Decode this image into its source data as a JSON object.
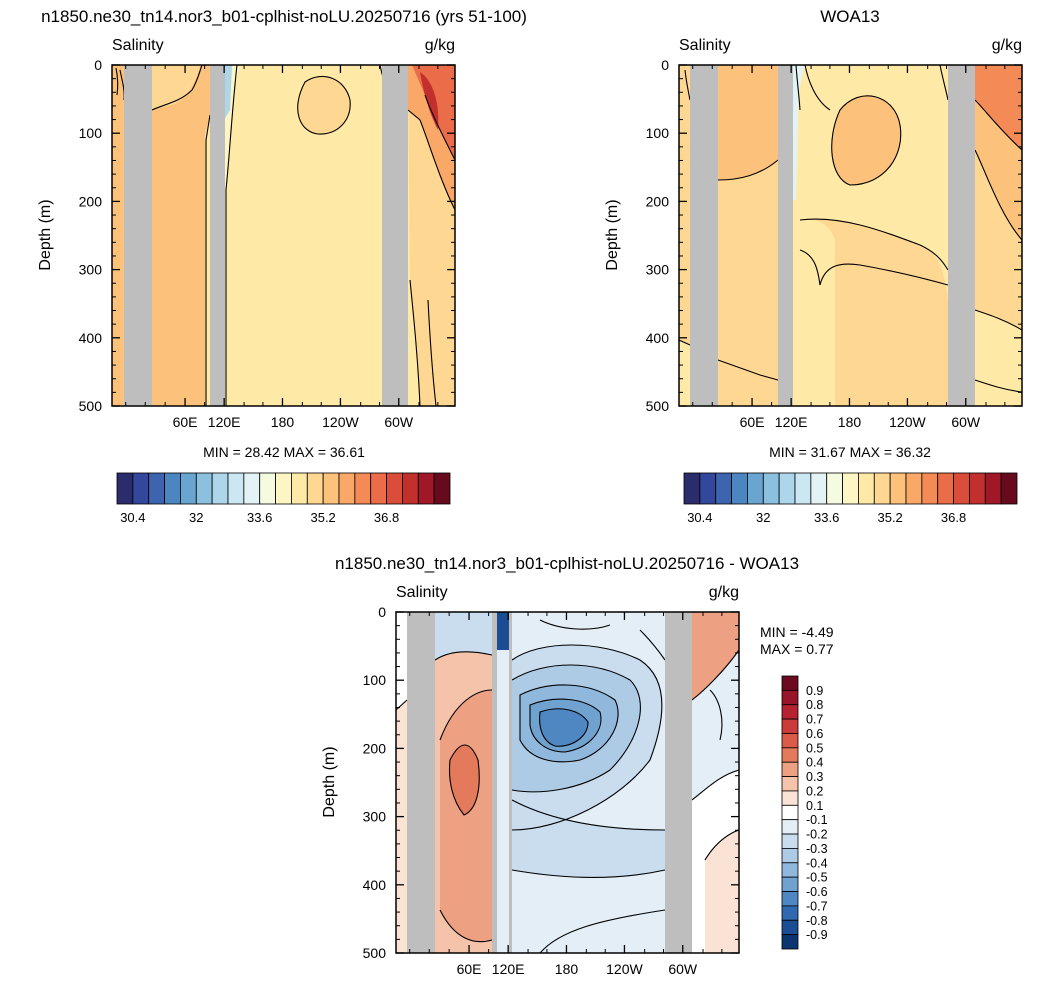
{
  "panels": [
    {
      "title": "n1850.ne30_tn14.nor3_b01-cplhist-noLU.20250716 (yrs 51-100)",
      "left_label": "Salinity",
      "right_label": "g/kg",
      "ylabel": "Depth (m)",
      "yticks": [
        "0",
        "100",
        "200",
        "300",
        "400",
        "500"
      ],
      "xticks": [
        "60E",
        "120E",
        "180",
        "120W",
        "60W"
      ],
      "stats": "MIN = 28.42  MAX = 36.61"
    },
    {
      "title": "WOA13",
      "left_label": "Salinity",
      "right_label": "g/kg",
      "ylabel": "Depth (m)",
      "yticks": [
        "0",
        "100",
        "200",
        "300",
        "400",
        "500"
      ],
      "xticks": [
        "60E",
        "120E",
        "180",
        "120W",
        "60W"
      ],
      "stats": "MIN = 31.67  MAX = 36.32"
    },
    {
      "title": "n1850.ne30_tn14.nor3_b01-cplhist-noLU.20250716 - WOA13",
      "left_label": "Salinity",
      "right_label": "g/kg",
      "ylabel": "Depth (m)",
      "yticks": [
        "0",
        "100",
        "200",
        "300",
        "400",
        "500"
      ],
      "xticks": [
        "60E",
        "120E",
        "180",
        "120W",
        "60W"
      ],
      "stats_min": "MIN =  -4.49",
      "stats_max": "MAX =   0.77"
    }
  ],
  "colorbar_horizontal": {
    "labels": [
      "30.4",
      "32",
      "33.6",
      "35.2",
      "36.8"
    ],
    "colors": [
      "#2b2c6b",
      "#33479c",
      "#3d64ae",
      "#4c86c1",
      "#69a5d1",
      "#8cc0df",
      "#add6ea",
      "#cbe7f2",
      "#e3f3f5",
      "#f5fbe0",
      "#fdf6c4",
      "#fee9a6",
      "#fed792",
      "#fcc27c",
      "#f9a868",
      "#f48a55",
      "#ea6c48",
      "#da4d3a",
      "#c2302d",
      "#a01728",
      "#680a1e"
    ]
  },
  "colorbar_vertical": {
    "labels": [
      "0.9",
      "0.8",
      "0.7",
      "0.6",
      "0.5",
      "0.4",
      "0.3",
      "0.2",
      "0.1",
      "-0.1",
      "-0.2",
      "-0.3",
      "-0.4",
      "-0.5",
      "-0.6",
      "-0.7",
      "-0.8",
      "-0.9"
    ],
    "colors": [
      "#6c0a20",
      "#961529",
      "#b4232f",
      "#cb3b3a",
      "#db5a48",
      "#e47a5c",
      "#eda182",
      "#f4c3a9",
      "#fae3d4",
      "#ffffff",
      "#e3eef6",
      "#c9ddee",
      "#aecbe5",
      "#90b8dc",
      "#70a2d0",
      "#4e87c2",
      "#2f69b0",
      "#1a4d94",
      "#0c3470"
    ]
  },
  "chart_data": [
    {
      "type": "heatmap",
      "title": "n1850.ne30_tn14.nor3_b01-cplhist-noLU.20250716 (yrs 51-100)",
      "variable": "Salinity",
      "units": "g/kg",
      "ylabel": "Depth (m)",
      "ylim": [
        500,
        0
      ],
      "y_ticks": [
        0,
        100,
        200,
        300,
        400,
        500
      ],
      "x_ticks": [
        "60E",
        "120E",
        "180",
        "120W",
        "60W"
      ],
      "min": 28.42,
      "max": 36.61,
      "colorbar_levels": [
        30.4,
        32,
        33.6,
        35.2,
        36.8
      ]
    },
    {
      "type": "heatmap",
      "title": "WOA13",
      "variable": "Salinity",
      "units": "g/kg",
      "ylabel": "Depth (m)",
      "ylim": [
        500,
        0
      ],
      "y_ticks": [
        0,
        100,
        200,
        300,
        400,
        500
      ],
      "x_ticks": [
        "60E",
        "120E",
        "180",
        "120W",
        "60W"
      ],
      "min": 31.67,
      "max": 36.32,
      "colorbar_levels": [
        30.4,
        32,
        33.6,
        35.2,
        36.8
      ]
    },
    {
      "type": "heatmap",
      "title": "n1850.ne30_tn14.nor3_b01-cplhist-noLU.20250716 - WOA13",
      "variable": "Salinity",
      "units": "g/kg",
      "ylabel": "Depth (m)",
      "ylim": [
        500,
        0
      ],
      "y_ticks": [
        0,
        100,
        200,
        300,
        400,
        500
      ],
      "x_ticks": [
        "60E",
        "120E",
        "180",
        "120W",
        "60W"
      ],
      "min": -4.49,
      "max": 0.77,
      "colorbar_levels": [
        0.9,
        0.8,
        0.7,
        0.6,
        0.5,
        0.4,
        0.3,
        0.2,
        0.1,
        -0.1,
        -0.2,
        -0.3,
        -0.4,
        -0.5,
        -0.6,
        -0.7,
        -0.8,
        -0.9
      ]
    }
  ]
}
